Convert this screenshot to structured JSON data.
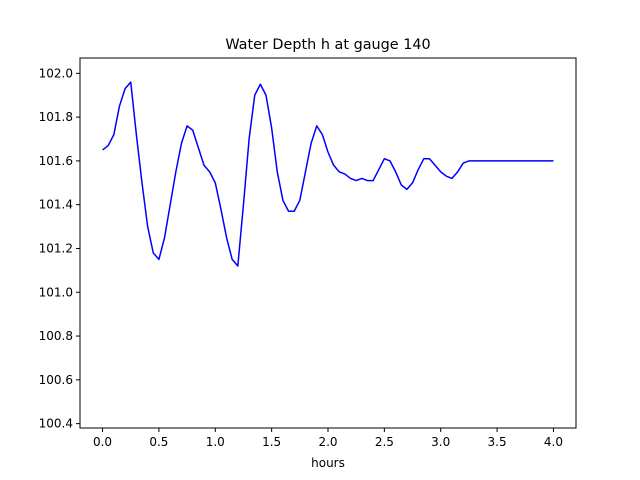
{
  "chart_data": {
    "type": "line",
    "title": "Water Depth h at gauge 140",
    "xlabel": "hours",
    "ylabel": "",
    "xlim": [
      -0.2,
      4.2
    ],
    "ylim": [
      100.38,
      102.07
    ],
    "xticks": [
      "0.0",
      "0.5",
      "1.0",
      "1.5",
      "2.0",
      "2.5",
      "3.0",
      "3.5",
      "4.0"
    ],
    "yticks": [
      "100.4",
      "100.6",
      "100.8",
      "101.0",
      "101.2",
      "101.4",
      "101.6",
      "101.8",
      "102.0"
    ],
    "grid": false,
    "line_color": "#0000ff",
    "series": [
      {
        "x": [
          0.0,
          0.05,
          0.1,
          0.15,
          0.2,
          0.25,
          0.3,
          0.35,
          0.4,
          0.45,
          0.5,
          0.55,
          0.6,
          0.65,
          0.7,
          0.75,
          0.8,
          0.85,
          0.9,
          0.95,
          1.0,
          1.05,
          1.1,
          1.15,
          1.2,
          1.25,
          1.3,
          1.35,
          1.4,
          1.45,
          1.5,
          1.55,
          1.6,
          1.65,
          1.7,
          1.75,
          1.8,
          1.85,
          1.9,
          1.95,
          2.0,
          2.05,
          2.1,
          2.15,
          2.2,
          2.25,
          2.3,
          2.35,
          2.4,
          2.45,
          2.5,
          2.55,
          2.6,
          2.65,
          2.7,
          2.75,
          2.8,
          2.85,
          2.9,
          2.95,
          3.0,
          3.05,
          3.1,
          3.15,
          3.2,
          3.25,
          3.3,
          3.35,
          3.4,
          3.45,
          3.5,
          3.55,
          3.6,
          3.65,
          3.7,
          3.75,
          3.8,
          3.85,
          3.9,
          3.95,
          4.0
        ],
        "y": [
          101.65,
          101.67,
          101.72,
          101.85,
          101.93,
          101.96,
          101.72,
          101.5,
          101.3,
          101.18,
          101.15,
          101.25,
          101.4,
          101.55,
          101.68,
          101.76,
          101.74,
          101.66,
          101.58,
          101.55,
          101.5,
          101.38,
          101.25,
          101.15,
          101.12,
          101.4,
          101.7,
          101.9,
          101.95,
          101.9,
          101.75,
          101.55,
          101.42,
          101.37,
          101.37,
          101.42,
          101.55,
          101.68,
          101.76,
          101.72,
          101.64,
          101.58,
          101.55,
          101.54,
          101.52,
          101.51,
          101.52,
          101.51,
          101.51,
          101.56,
          101.61,
          101.6,
          101.55,
          101.49,
          101.47,
          101.5,
          101.56,
          101.61,
          101.61,
          101.58,
          101.55,
          101.53,
          101.52,
          101.55,
          101.59,
          101.6,
          101.6,
          101.6,
          101.6,
          101.6,
          101.6,
          101.6,
          101.6,
          101.6,
          101.6,
          101.6,
          101.6,
          101.6,
          101.6,
          101.6,
          101.6
        ]
      }
    ]
  }
}
